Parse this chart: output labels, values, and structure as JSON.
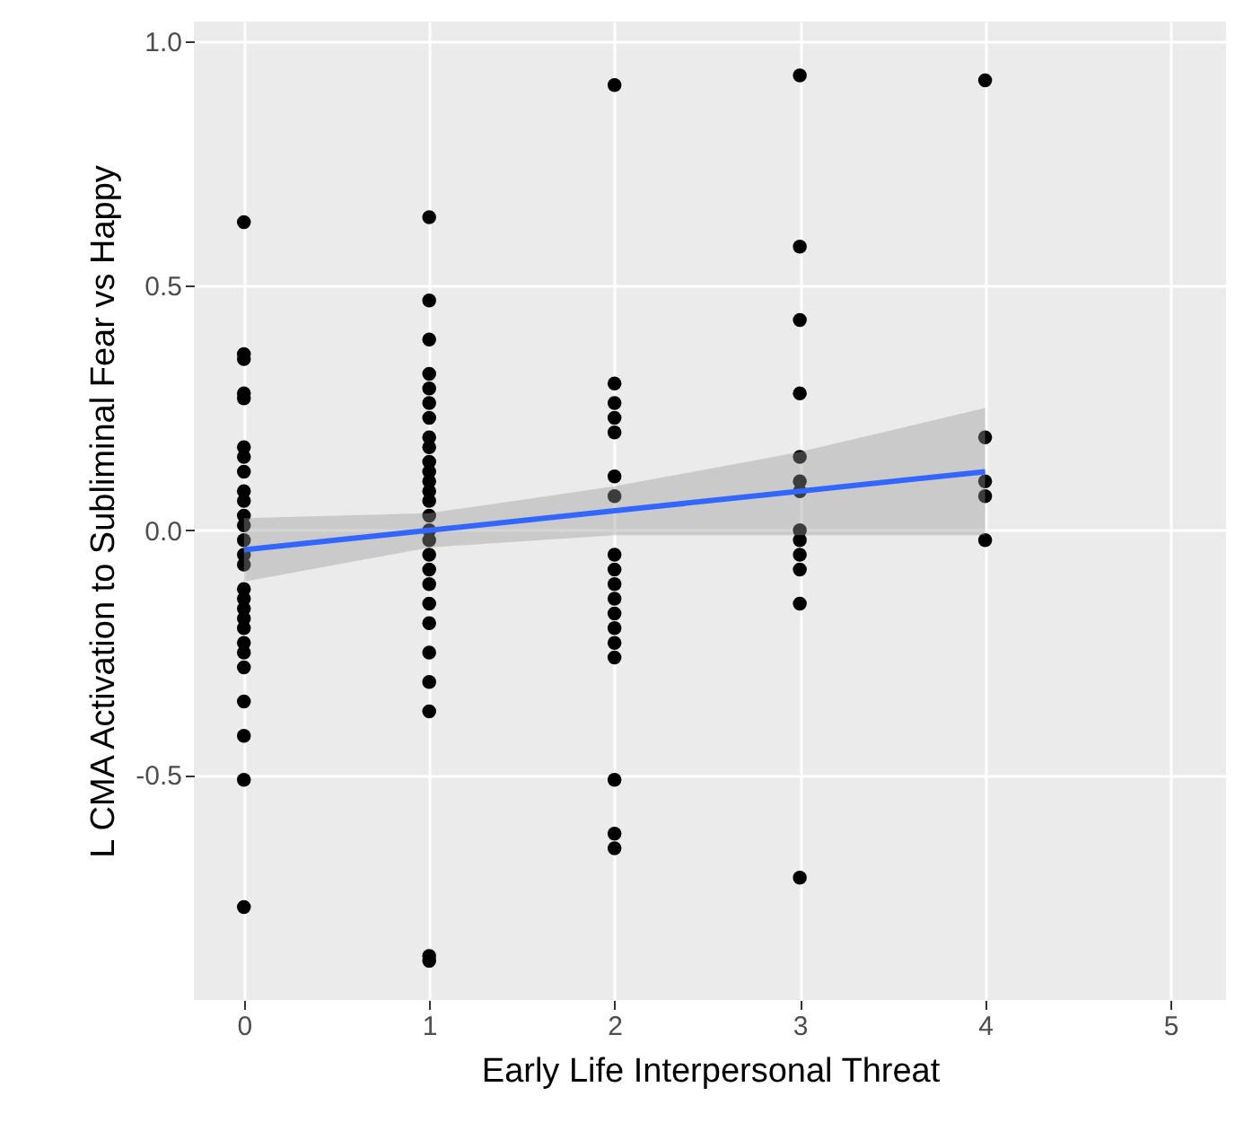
{
  "chart_data": {
    "type": "scatter",
    "xlabel": "Early Life Interpersonal Threat",
    "ylabel": "L CMA Activation to Subliminal Fear vs Happy",
    "xlim": [
      -0.27,
      5.3
    ],
    "xticks": [
      0,
      1,
      2,
      3,
      4,
      5
    ],
    "ylim": [
      -0.96,
      1.04
    ],
    "yticks": [
      {
        "value": -0.5,
        "label": "-0.5"
      },
      {
        "value": 0,
        "label": "0.0"
      },
      {
        "value": 0.5,
        "label": "0.5"
      },
      {
        "value": 1,
        "label": "1.0"
      }
    ],
    "grid": true,
    "series": [
      {
        "marker": "circle",
        "color": "#000000",
        "x": [
          0,
          0,
          0,
          0,
          0,
          0,
          0,
          0,
          0,
          0,
          0,
          0,
          0,
          0,
          0,
          0,
          0,
          0,
          0,
          0,
          0,
          0,
          0,
          0,
          0,
          0,
          0,
          1,
          1,
          1,
          1,
          1,
          1,
          1,
          1,
          1,
          1,
          1,
          1,
          1,
          1,
          1,
          1,
          1,
          1,
          1,
          1,
          1,
          1,
          1,
          1,
          1,
          1,
          1,
          2,
          2,
          2,
          2,
          2,
          2,
          2,
          2,
          2,
          2,
          2,
          2,
          2,
          2,
          2,
          2,
          2,
          2,
          3,
          3,
          3,
          3,
          3,
          3,
          3,
          3,
          3,
          3,
          3,
          3,
          3,
          4,
          4,
          4,
          4,
          4
        ],
        "values": [
          0.63,
          0.36,
          0.35,
          0.28,
          0.27,
          0.17,
          0.15,
          0.12,
          0.08,
          0.06,
          0.03,
          0.01,
          -0.02,
          -0.05,
          -0.07,
          -0.12,
          -0.14,
          -0.16,
          -0.18,
          -0.2,
          -0.23,
          -0.25,
          -0.28,
          -0.35,
          -0.42,
          -0.51,
          -0.77,
          0.64,
          0.47,
          0.39,
          0.32,
          0.29,
          0.26,
          0.23,
          0.19,
          0.17,
          0.14,
          0.12,
          0.1,
          0.08,
          0.06,
          0.03,
          0.0,
          -0.02,
          -0.05,
          -0.08,
          -0.11,
          -0.15,
          -0.19,
          -0.25,
          -0.31,
          -0.37,
          -0.87,
          -0.88,
          0.91,
          0.3,
          0.26,
          0.23,
          0.2,
          0.11,
          0.07,
          -0.05,
          -0.08,
          -0.11,
          -0.14,
          -0.17,
          -0.2,
          -0.23,
          -0.26,
          -0.51,
          -0.62,
          -0.65,
          0.93,
          0.58,
          0.43,
          0.28,
          0.15,
          0.1,
          0.08,
          0.0,
          -0.02,
          -0.05,
          -0.08,
          -0.15,
          -0.71,
          0.92,
          0.19,
          0.1,
          0.07,
          -0.02
        ]
      },
      {
        "type": "line",
        "color": "#3366ff",
        "x": [
          0,
          1,
          2,
          3,
          4
        ],
        "values": [
          -0.04,
          0.0,
          0.04,
          0.08,
          0.12
        ],
        "lower": [
          -0.105,
          -0.035,
          -0.01,
          -0.01,
          -0.01
        ],
        "upper": [
          0.025,
          0.035,
          0.09,
          0.16,
          0.25
        ]
      }
    ]
  }
}
